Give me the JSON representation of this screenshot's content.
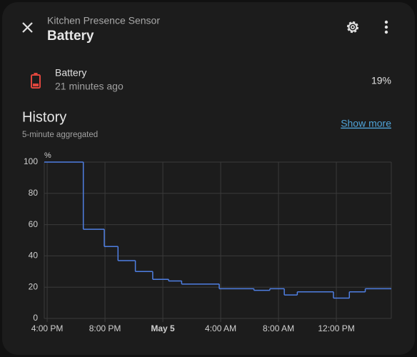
{
  "header": {
    "subtitle": "Kitchen Presence Sensor",
    "title": "Battery"
  },
  "entity": {
    "name": "Battery",
    "last_changed": "21 minutes ago",
    "state": "19%"
  },
  "history": {
    "title": "History",
    "subtitle": "5-minute aggregated",
    "link": "Show more"
  },
  "chart_data": {
    "type": "line",
    "step": "after",
    "y_unit": "%",
    "x": [
      -0.2,
      2.5,
      3.95,
      4.9,
      6.1,
      7.3,
      8.4,
      9.3,
      11.9,
      14.3,
      15.4,
      16.4,
      17.3,
      19.8,
      20.9,
      22.0
    ],
    "series": [
      {
        "color": "#4f7fe3",
        "values": [
          100,
          57,
          46,
          37,
          30,
          25,
          24,
          22,
          19,
          18,
          19,
          15,
          17,
          13,
          17,
          19
        ]
      }
    ],
    "xlim": [
      -0.2,
      23.8
    ],
    "ylim": [
      0,
      100
    ],
    "xticks": [
      {
        "value": 0,
        "label": "4:00 PM"
      },
      {
        "value": 4,
        "label": "8:00 PM"
      },
      {
        "value": 8,
        "label": "May 5",
        "bold": true
      },
      {
        "value": 12,
        "label": "4:00 AM"
      },
      {
        "value": 16,
        "label": "8:00 AM"
      },
      {
        "value": 20,
        "label": "12:00 PM"
      }
    ],
    "yticks": [
      0,
      20,
      40,
      60,
      80,
      100
    ],
    "grid": true
  }
}
